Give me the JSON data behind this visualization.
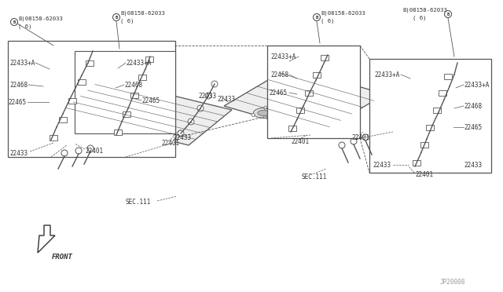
{
  "background_color": "#ffffff",
  "line_color": "#555555",
  "text_color": "#333333",
  "watermark_color": "#999999",
  "fig_width": 6.4,
  "fig_height": 3.72,
  "dpi": 100,
  "watermark": "JP20008",
  "front_label": "FRONT",
  "bolt_label": "B)08158-62033",
  "bolt_suffix": "( 6)",
  "sec_label": "SEC.111",
  "parts": [
    "22433+A",
    "22433",
    "22468",
    "22465",
    "22401"
  ]
}
